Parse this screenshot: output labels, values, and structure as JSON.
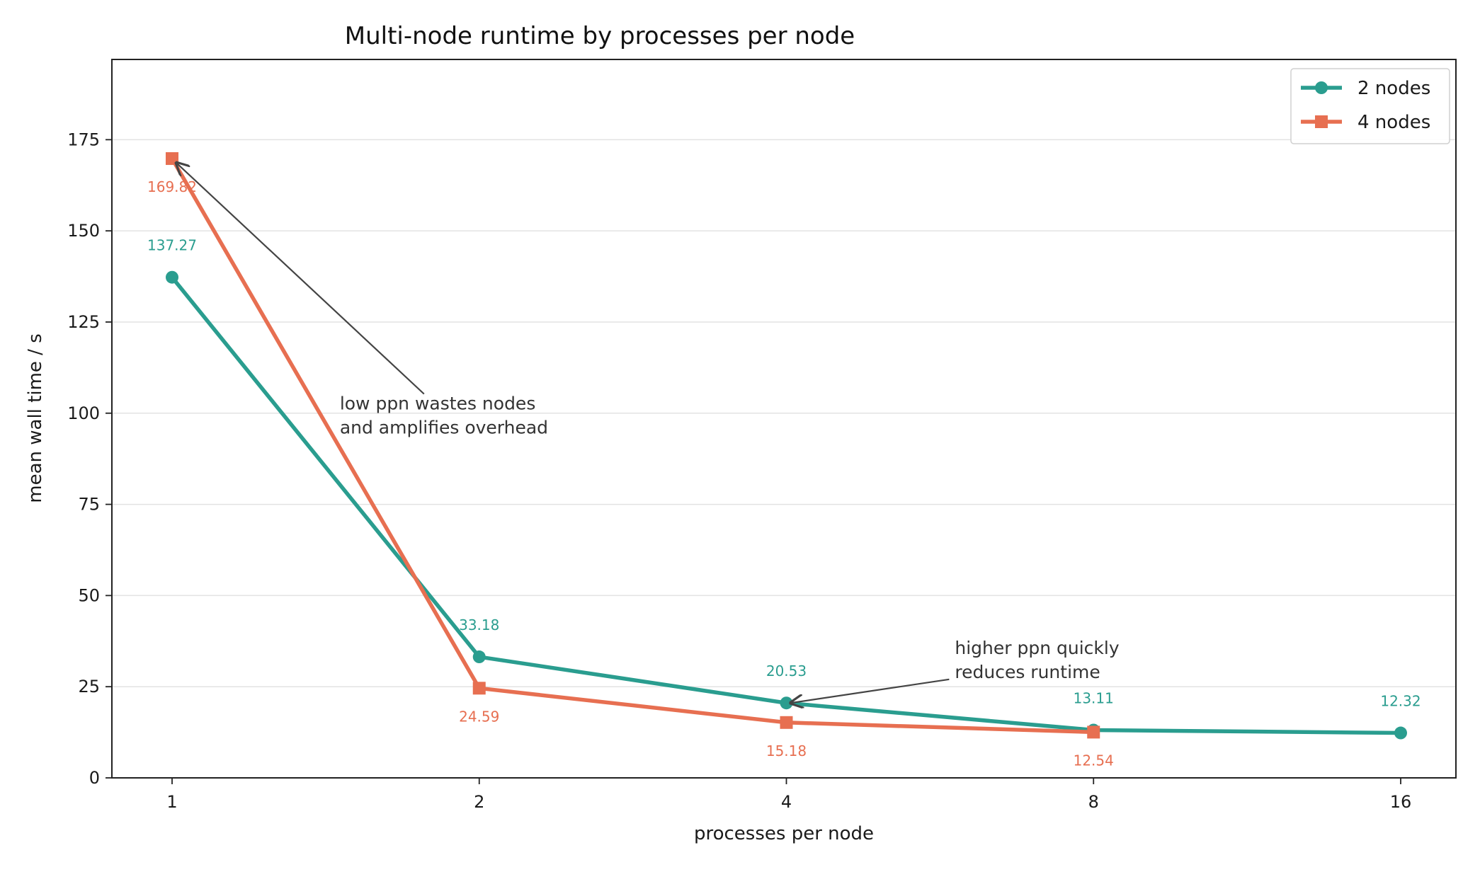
{
  "chart_data": {
    "type": "line",
    "title": "Multi-node runtime by processes per node",
    "xlabel": "processes per node",
    "ylabel": "mean wall time / s",
    "x_scale": "log2",
    "x": [
      1,
      2,
      4,
      8,
      16
    ],
    "x_tick_labels": [
      "1",
      "2",
      "4",
      "8",
      "16"
    ],
    "ylim": [
      0,
      197
    ],
    "y_ticks": [
      0,
      25,
      50,
      75,
      100,
      125,
      150,
      175
    ],
    "grid": "horizontal",
    "legend_position": "top-right",
    "series": [
      {
        "name": "2 nodes",
        "color": "#2a9d8f",
        "marker": "circle",
        "x": [
          1,
          2,
          4,
          8,
          16
        ],
        "values": [
          137.27,
          33.18,
          20.53,
          13.11,
          12.32
        ],
        "labels": [
          "137.27",
          "33.18",
          "20.53",
          "13.11",
          "12.32"
        ]
      },
      {
        "name": "4 nodes",
        "color": "#e76f51",
        "marker": "square",
        "x": [
          1,
          2,
          4,
          8
        ],
        "values": [
          169.82,
          24.59,
          15.18,
          12.54
        ],
        "labels": [
          "169.82",
          "24.59",
          "15.18",
          "12.54"
        ]
      }
    ],
    "annotations": [
      {
        "lines": [
          "low ppn wastes nodes",
          "and amplifies overhead"
        ],
        "target_x": 1,
        "target_y": 169.82,
        "text_x": 1.46,
        "text_y": 101
      },
      {
        "lines": [
          "higher ppn quickly",
          "reduces runtime"
        ],
        "target_x": 4,
        "target_y": 20.53,
        "text_x": 5.85,
        "text_y": 34
      }
    ]
  }
}
